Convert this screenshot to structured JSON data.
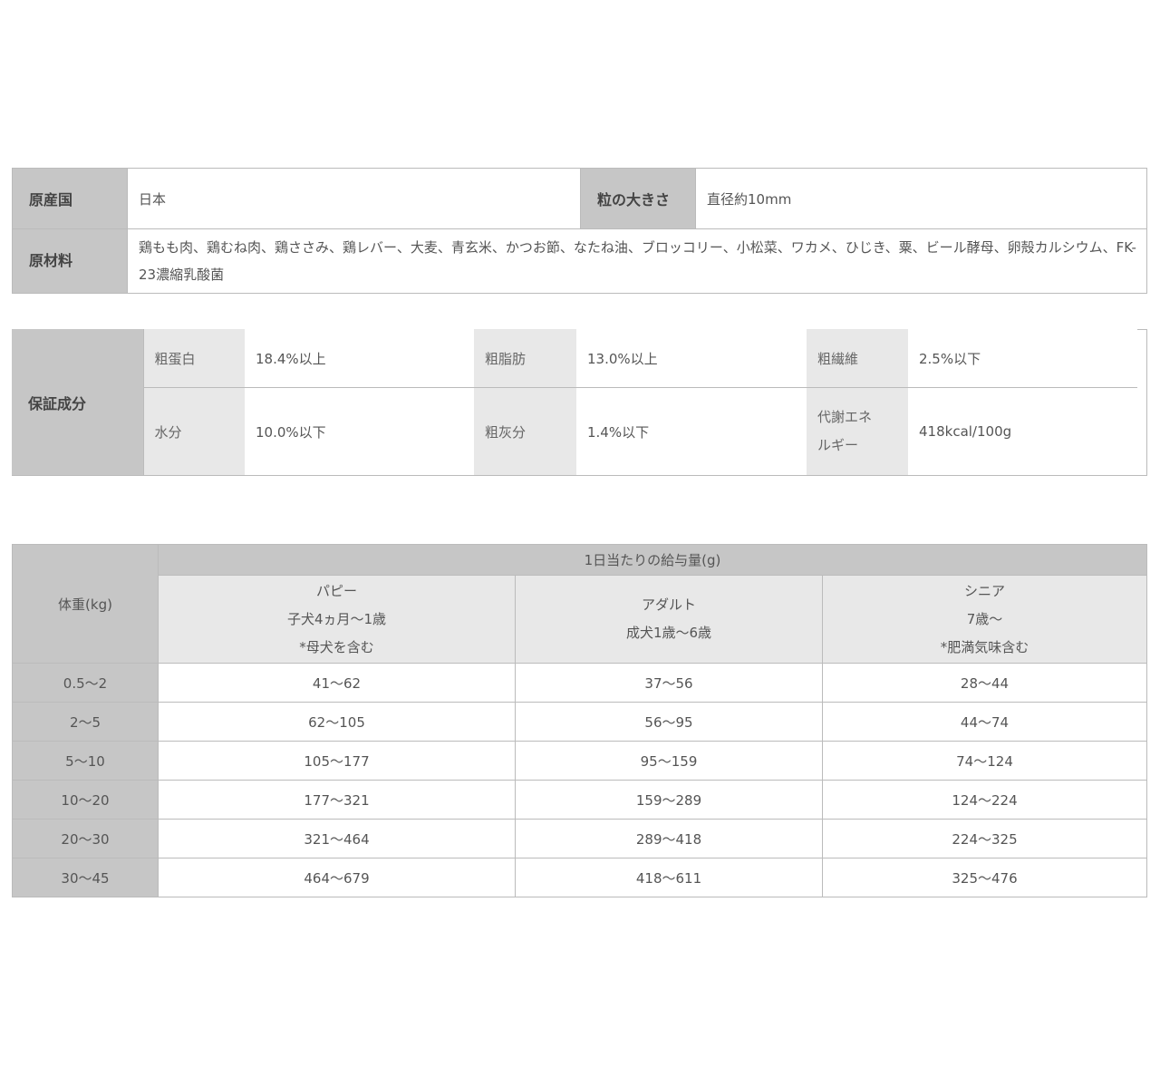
{
  "spec": {
    "origin_label": "原産国",
    "origin_value": "日本",
    "size_label": "粒の大きさ",
    "size_value": "直径約10mm",
    "ingredients_label": "原材料",
    "ingredients_value": "鶏もも肉、鶏むね肉、鶏ささみ、鶏レバー、大麦、青玄米、かつお節、なたね油、ブロッコリー、小松菜、ワカメ、ひじき、粟、ビール酵母、卵殻カルシウム、FK-23濃縮乳酸菌"
  },
  "analysis": {
    "label": "保証成分",
    "items": [
      {
        "label": "粗蛋白",
        "value": "18.4%以上"
      },
      {
        "label": "粗脂肪",
        "value": "13.0%以上"
      },
      {
        "label": "粗繊維",
        "value": "2.5%以下"
      },
      {
        "label": "水分",
        "value": "10.0%以下"
      },
      {
        "label": "粗灰分",
        "value": "1.4%以下"
      },
      {
        "label": "代謝エネルギー",
        "value": "418kcal/100g"
      }
    ]
  },
  "feeding": {
    "weight_header": "体重(kg)",
    "amount_header": "1日当たりの給与量(g)",
    "columns": [
      {
        "name": "パピー",
        "sub": "子犬4ヵ月～1歳",
        "note": "*母犬を含む"
      },
      {
        "name": "アダルト",
        "sub": "成犬1歳～6歳",
        "note": ""
      },
      {
        "name": "シニア",
        "sub": "7歳～",
        "note": "*肥満気味含む"
      }
    ],
    "rows": [
      [
        "0.5～2",
        "41～62",
        "37～56",
        "28～44"
      ],
      [
        "2～5",
        "62～105",
        "56～95",
        "44～74"
      ],
      [
        "5～10",
        "105～177",
        "95～159",
        "74～124"
      ],
      [
        "10～20",
        "177～321",
        "159～289",
        "124～224"
      ],
      [
        "20～30",
        "321～464",
        "289～418",
        "224～325"
      ],
      [
        "30～45",
        "464～679",
        "418～611",
        "325～476"
      ]
    ]
  }
}
